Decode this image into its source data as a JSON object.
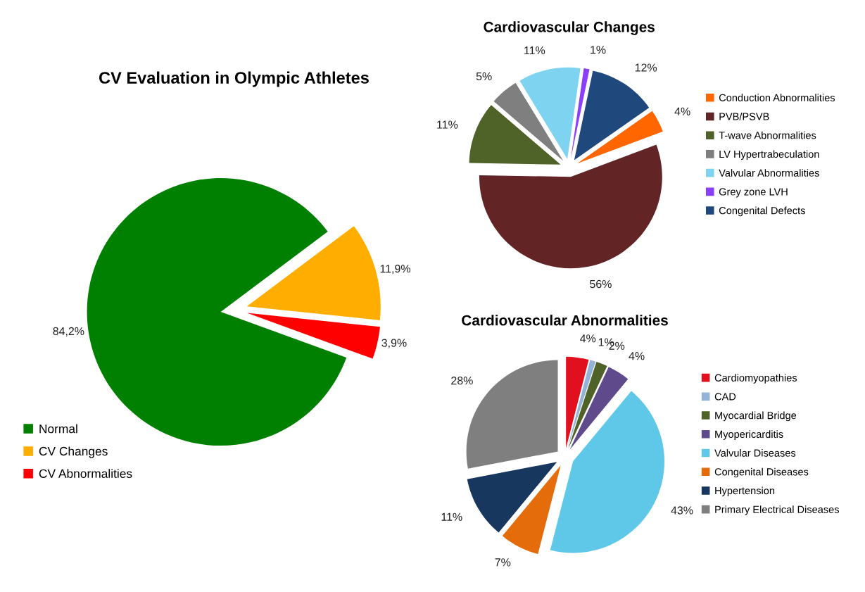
{
  "chart_data": [
    {
      "type": "pie",
      "title": "CV Evaluation in Olympic Athletes",
      "categories": [
        "Normal",
        "CV Changes",
        "CV Abnormalities"
      ],
      "values": [
        84.2,
        11.9,
        3.9
      ],
      "value_labels": [
        "84,2%",
        "11,9%",
        "3,9%"
      ],
      "colors": [
        "#008000",
        "#ffae00",
        "#ff0000"
      ],
      "legend": "left"
    },
    {
      "type": "pie",
      "title": "Cardiovascular Changes",
      "categories": [
        "Conduction Abnormalities",
        "PVB/PSVB",
        "T-wave Abnormalities",
        "LV Hypertrabeculation",
        "Valvular Abnormalities",
        "Grey zone LVH",
        "Congenital Defects"
      ],
      "values": [
        4,
        56,
        11,
        5,
        11,
        1,
        12
      ],
      "value_labels": [
        "4%",
        "56%",
        "11%",
        "5%",
        "11%",
        "1%",
        "12%"
      ],
      "colors": [
        "#ff6600",
        "#622424",
        "#4f6228",
        "#7f7f7f",
        "#7dd3f0",
        "#8a3ffc",
        "#1f497d"
      ],
      "legend": "right"
    },
    {
      "type": "pie",
      "title": "Cardiovascular Abnormalities",
      "categories": [
        "Cardiomyopathies",
        "CAD",
        "Myocardial Bridge",
        "Myopericarditis",
        "Valvular Diseases",
        "Congenital Diseases",
        "Hypertension",
        "Primary Electrical Diseases"
      ],
      "values": [
        4,
        1,
        2,
        4,
        43,
        7,
        11,
        28
      ],
      "value_labels": [
        "4%",
        "1%",
        "2%",
        "4%",
        "43%",
        "7%",
        "11%",
        "28%"
      ],
      "colors": [
        "#e0101e",
        "#95b3d7",
        "#4f6228",
        "#5f4b8b",
        "#5fc8e8",
        "#e46c0a",
        "#17375e",
        "#7f7f7f"
      ],
      "legend": "right"
    }
  ]
}
